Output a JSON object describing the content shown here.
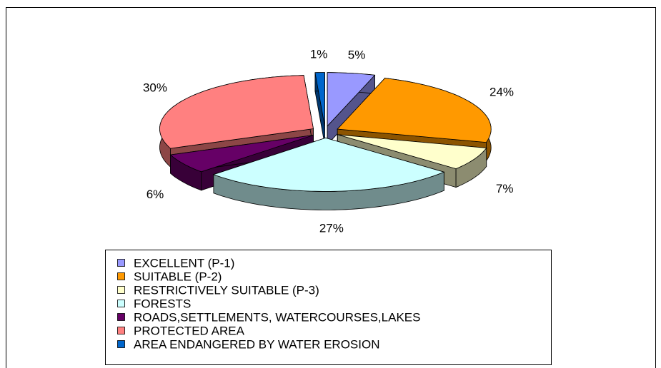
{
  "chart_data": {
    "type": "pie",
    "categories": [
      "EXCELLENT (P-1)",
      "SUITABLE (P-2)",
      "RESTRICTIVELY SUITABLE (P-3)",
      "FORESTS",
      "ROADS,SETTLEMENTS, WATERCOURSES,LAKES",
      "PROTECTED AREA",
      "AREA ENDANGERED BY WATER EROSION"
    ],
    "values": [
      5,
      24,
      7,
      27,
      6,
      30,
      1
    ],
    "value_labels": [
      "5%",
      "24%",
      "7%",
      "27%",
      "6%",
      "30%",
      "1%"
    ],
    "colors": [
      "#9999ff",
      "#ff9900",
      "#ffffcc",
      "#ccffff",
      "#660066",
      "#ff8080",
      "#0066cc"
    ],
    "legend": "bottom"
  }
}
